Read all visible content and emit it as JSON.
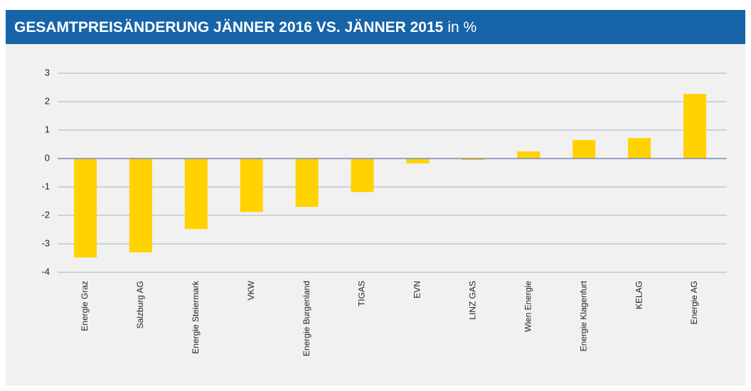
{
  "chart_data": {
    "type": "bar",
    "title": "GESAMTPREISÄNDERUNG JÄNNER 2016 VS. JÄNNER 2015",
    "unit": "in %",
    "categories": [
      "Energie Graz",
      "Salzburg AG",
      "Energie Steiermark",
      "VKW",
      "Energie Burgenland",
      "TIGAS",
      "EVN",
      "LINZ GAS",
      "Wien Energie",
      "Energie Klagenfurt",
      "KELAG",
      "Energie AG"
    ],
    "values": [
      -3.48,
      -3.3,
      -2.48,
      -1.88,
      -1.7,
      -1.18,
      -0.17,
      -0.05,
      0.25,
      0.65,
      0.72,
      2.27
    ],
    "color": "#ffd200",
    "ylim": [
      -4,
      3
    ],
    "yticks": [
      3,
      2,
      1,
      0,
      -1,
      -2,
      -3,
      -4
    ],
    "grid": true
  }
}
